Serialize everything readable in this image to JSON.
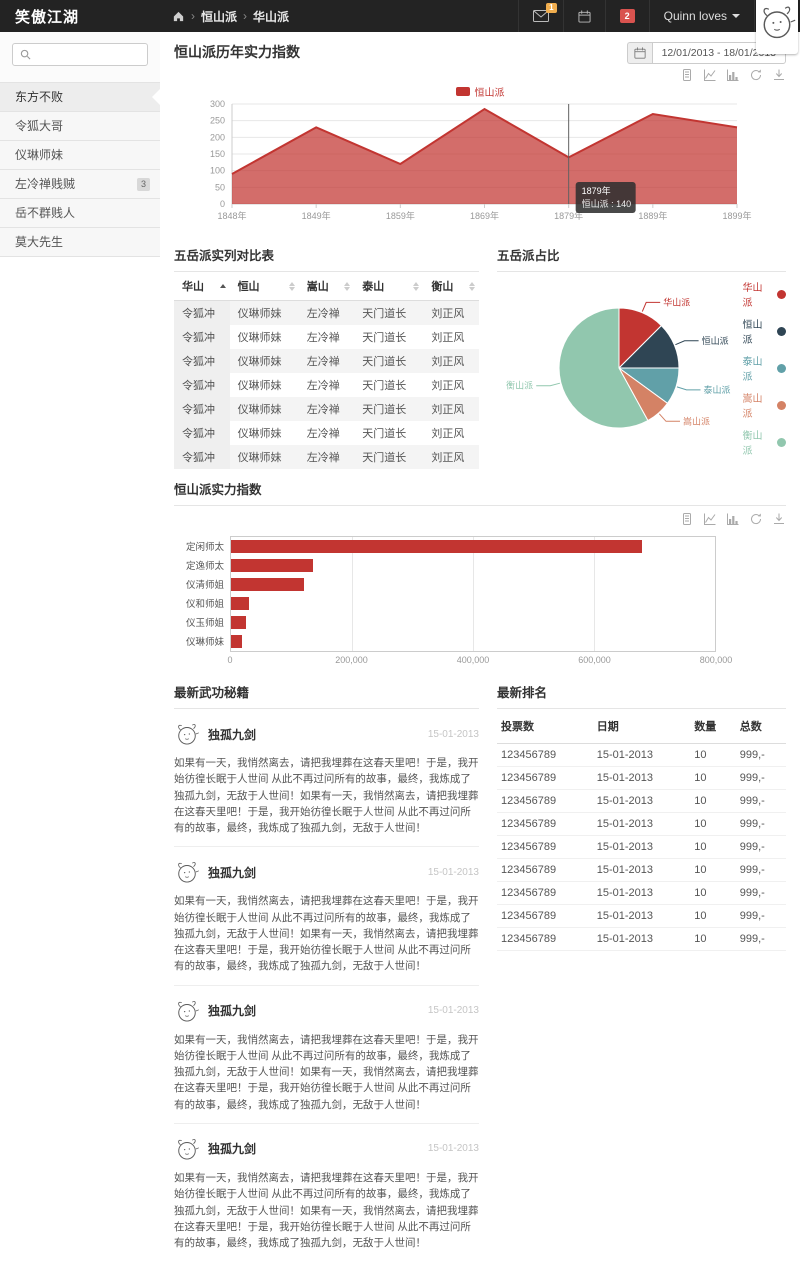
{
  "navbar": {
    "brand": "笑傲江湖",
    "breadcrumb": [
      "恒山派",
      "华山派"
    ],
    "mail_badge": "1",
    "notif_badge": "2",
    "user_menu": "Quinn loves"
  },
  "sidebar": {
    "search_placeholder": "",
    "items": [
      {
        "label": "东方不败",
        "active": true
      },
      {
        "label": "令狐大哥",
        "active": false
      },
      {
        "label": "仪琳师妹",
        "active": false
      },
      {
        "label": "左冷禅贱贼",
        "active": false,
        "badge": "3"
      },
      {
        "label": "岳不群贱人",
        "active": false
      },
      {
        "label": "莫大先生",
        "active": false
      }
    ]
  },
  "toolbar": {
    "date_range": "12/01/2013 - 18/01/2013",
    "toolbox_icons": [
      "data-view",
      "line-chart",
      "bar-chart",
      "restore",
      "download"
    ]
  },
  "chart_data": [
    {
      "id": "history",
      "type": "area",
      "title": "恒山派历年实力指数",
      "legend": [
        "恒山派"
      ],
      "x": [
        "1848年",
        "1849年",
        "1859年",
        "1869年",
        "1879年",
        "1889年",
        "1899年"
      ],
      "series": [
        {
          "name": "恒山派",
          "values": [
            90,
            230,
            120,
            285,
            140,
            270,
            230
          ]
        }
      ],
      "ylim": [
        0,
        300
      ],
      "yticks": [
        0,
        50,
        100,
        150,
        200,
        250,
        300
      ],
      "grid": true,
      "color": "#c23531",
      "tooltip": {
        "x": "1879年",
        "series": "恒山派",
        "value": 140,
        "point_index": 4,
        "text_line1": "1879年",
        "text_line2": "恒山派 : 140"
      }
    },
    {
      "id": "share",
      "type": "pie",
      "title": "五岳派占比",
      "labels": [
        "华山派",
        "恒山派",
        "泰山派",
        "嵩山派",
        "衡山派"
      ],
      "values": [
        12.5,
        12.5,
        10,
        7,
        58
      ],
      "colors": [
        "#c23531",
        "#2f4554",
        "#61a0a8",
        "#d48265",
        "#91c7ae"
      ],
      "legend_position": "right"
    },
    {
      "id": "strength",
      "type": "bar",
      "title": "恒山派实力指数",
      "orientation": "horizontal",
      "categories": [
        "定闲师太",
        "定逸师太",
        "仪清师姐",
        "仪和师姐",
        "仪玉师姐",
        "仪琳师妹"
      ],
      "values": [
        680000,
        135000,
        120000,
        30000,
        25000,
        18000
      ],
      "xlim": [
        0,
        800000
      ],
      "xticks": [
        "0",
        "200,000",
        "400,000",
        "600,000",
        "800,000"
      ],
      "color": "#c23531"
    }
  ],
  "compare_table": {
    "title": "五岳派实列对比表",
    "headers": [
      "华山",
      "恒山",
      "嵩山",
      "泰山",
      "衡山"
    ],
    "sorted_column": 0,
    "rows": [
      [
        "令狐冲",
        "仪琳师妹",
        "左冷禅",
        "天门道长",
        "刘正风"
      ],
      [
        "令狐冲",
        "仪琳师妹",
        "左冷禅",
        "天门道长",
        "刘正风"
      ],
      [
        "令狐冲",
        "仪琳师妹",
        "左冷禅",
        "天门道长",
        "刘正风"
      ],
      [
        "令狐冲",
        "仪琳师妹",
        "左冷禅",
        "天门道长",
        "刘正风"
      ],
      [
        "令狐冲",
        "仪琳师妹",
        "左冷禅",
        "天门道长",
        "刘正风"
      ],
      [
        "令狐冲",
        "仪琳师妹",
        "左冷禅",
        "天门道长",
        "刘正风"
      ],
      [
        "令狐冲",
        "仪琳师妹",
        "左冷禅",
        "天门道长",
        "刘正风"
      ]
    ]
  },
  "feed": {
    "title": "最新武功秘籍",
    "items": [
      {
        "title": "独孤九剑",
        "date": "15-01-2013",
        "text": "如果有一天，我悄然离去，请把我埋葬在这春天里吧！于是，我开始彷徨长眠于人世间 从此不再过问所有的故事，最终，我炼成了独孤九剑，无敌于人世间！如果有一天，我悄然离去，请把我埋葬在这春天里吧！于是，我开始彷徨长眠于人世间 从此不再过问所有的故事，最终，我炼成了独孤九剑，无敌于人世间！"
      },
      {
        "title": "独孤九剑",
        "date": "15-01-2013",
        "text": "如果有一天，我悄然离去，请把我埋葬在这春天里吧！于是，我开始彷徨长眠于人世间 从此不再过问所有的故事，最终，我炼成了独孤九剑，无敌于人世间！如果有一天，我悄然离去，请把我埋葬在这春天里吧！于是，我开始彷徨长眠于人世间 从此不再过问所有的故事，最终，我炼成了独孤九剑，无敌于人世间！"
      },
      {
        "title": "独孤九剑",
        "date": "15-01-2013",
        "text": "如果有一天，我悄然离去，请把我埋葬在这春天里吧！于是，我开始彷徨长眠于人世间 从此不再过问所有的故事，最终，我炼成了独孤九剑，无敌于人世间！如果有一天，我悄然离去，请把我埋葬在这春天里吧！于是，我开始彷徨长眠于人世间 从此不再过问所有的故事，最终，我炼成了独孤九剑，无敌于人世间！"
      },
      {
        "title": "独孤九剑",
        "date": "15-01-2013",
        "text": "如果有一天，我悄然离去，请把我埋葬在这春天里吧！于是，我开始彷徨长眠于人世间 从此不再过问所有的故事，最终，我炼成了独孤九剑，无敌于人世间！如果有一天，我悄然离去，请把我埋葬在这春天里吧！于是，我开始彷徨长眠于人世间 从此不再过问所有的故事，最终，我炼成了独孤九剑，无敌于人世间！"
      }
    ]
  },
  "rank": {
    "title": "最新排名",
    "headers": [
      "投票数",
      "日期",
      "数量",
      "总数"
    ],
    "rows": [
      [
        "123456789",
        "15-01-2013",
        "10",
        "999,-"
      ],
      [
        "123456789",
        "15-01-2013",
        "10",
        "999,-"
      ],
      [
        "123456789",
        "15-01-2013",
        "10",
        "999,-"
      ],
      [
        "123456789",
        "15-01-2013",
        "10",
        "999,-"
      ],
      [
        "123456789",
        "15-01-2013",
        "10",
        "999,-"
      ],
      [
        "123456789",
        "15-01-2013",
        "10",
        "999,-"
      ],
      [
        "123456789",
        "15-01-2013",
        "10",
        "999,-"
      ],
      [
        "123456789",
        "15-01-2013",
        "10",
        "999,-"
      ],
      [
        "123456789",
        "15-01-2013",
        "10",
        "999,-"
      ]
    ]
  }
}
